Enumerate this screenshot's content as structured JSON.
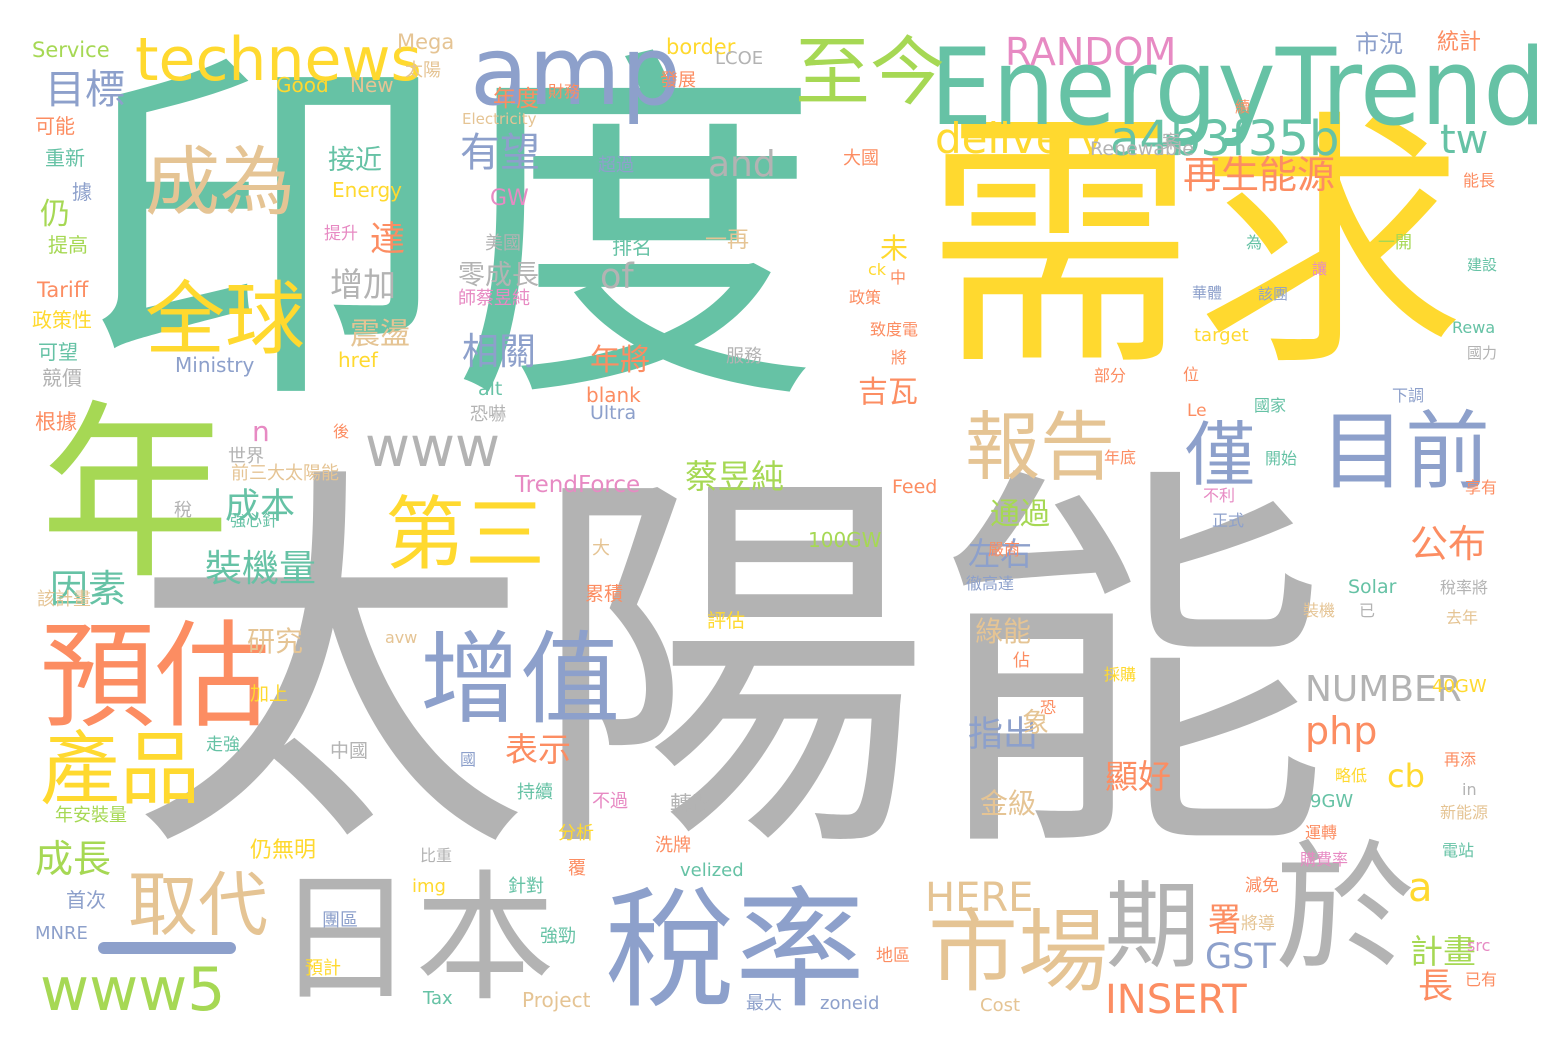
{
  "palette": {
    "green": "#66c2a5",
    "gray": "#b3b3b3",
    "yellow": "#ffd92f",
    "lime": "#a6d854",
    "orange": "#fc8d62",
    "blue": "#8da0cb",
    "tan": "#e5c494",
    "pink": "#e78ac3"
  },
  "words": [
    {
      "text": "太陽能",
      "color": "gray",
      "o": "h"
    },
    {
      "text": "印度",
      "color": "green",
      "o": "h"
    },
    {
      "text": "需求",
      "color": "yellow",
      "o": "h"
    },
    {
      "text": "年",
      "color": "lime",
      "o": "h"
    },
    {
      "text": "EnergyTrend",
      "color": "green",
      "o": "h"
    },
    {
      "text": "amp",
      "color": "blue",
      "o": "h"
    },
    {
      "text": "technews",
      "color": "yellow",
      "o": "h"
    },
    {
      "text": "至今",
      "color": "lime",
      "o": "h"
    },
    {
      "text": "日本",
      "color": "gray",
      "o": "h"
    },
    {
      "text": "稅率",
      "color": "blue",
      "o": "h"
    },
    {
      "text": "於",
      "color": "gray",
      "o": "h"
    },
    {
      "text": "市場",
      "color": "tan",
      "o": "h"
    },
    {
      "text": "期",
      "color": "gray",
      "o": "h"
    },
    {
      "text": "增值",
      "color": "blue",
      "o": "h"
    },
    {
      "text": "預估",
      "color": "orange",
      "o": "h"
    },
    {
      "text": "產品",
      "color": "yellow",
      "o": "h"
    },
    {
      "text": "第三",
      "color": "yellow",
      "o": "h"
    },
    {
      "text": "全球",
      "color": "yellow",
      "o": "h"
    },
    {
      "text": "成為",
      "color": "tan",
      "o": "h"
    },
    {
      "text": "目前",
      "color": "blue",
      "o": "h"
    },
    {
      "text": "報告",
      "color": "tan",
      "o": "h"
    },
    {
      "text": "僅",
      "color": "blue",
      "o": "h"
    },
    {
      "text": "取代",
      "color": "tan",
      "o": "h"
    },
    {
      "text": "www5",
      "color": "lime",
      "o": "h"
    },
    {
      "text": "www",
      "color": "gray",
      "o": "h"
    },
    {
      "text": "a4b3f35b",
      "color": "green",
      "o": "h"
    },
    {
      "text": "tw",
      "color": "green",
      "o": "h"
    },
    {
      "text": "RANDOM",
      "color": "pink",
      "o": "h"
    },
    {
      "text": "delivery",
      "color": "yellow",
      "o": "h"
    },
    {
      "text": "and",
      "color": "gray",
      "o": "h"
    },
    {
      "text": "NUMBER",
      "color": "gray",
      "o": "h"
    },
    {
      "text": "HERE",
      "color": "tan",
      "o": "h"
    },
    {
      "text": "INSERT",
      "color": "orange",
      "o": "h"
    },
    {
      "text": "php",
      "color": "orange",
      "o": "h"
    },
    {
      "text": "cb",
      "color": "yellow",
      "o": "h"
    },
    {
      "text": "a",
      "color": "yellow",
      "o": "h"
    },
    {
      "text": "公布",
      "color": "orange",
      "o": "h"
    },
    {
      "text": "計畫",
      "color": "lime",
      "o": "h"
    },
    {
      "text": "長",
      "color": "orange",
      "o": "h"
    },
    {
      "text": "GST",
      "color": "blue",
      "o": "h"
    },
    {
      "text": "署",
      "color": "orange",
      "o": "h"
    },
    {
      "text": "顯好",
      "color": "orange",
      "o": "h"
    },
    {
      "text": "再生能源",
      "color": "orange",
      "o": "h"
    },
    {
      "text": "有望",
      "color": "blue",
      "o": "h"
    },
    {
      "text": "of",
      "color": "gray",
      "o": "h"
    },
    {
      "text": "相關",
      "color": "blue",
      "o": "h"
    },
    {
      "text": "年將",
      "color": "orange",
      "o": "h"
    },
    {
      "text": "吉瓦",
      "color": "orange",
      "o": "h"
    },
    {
      "text": "蔡昱純",
      "color": "lime",
      "o": "h"
    },
    {
      "text": "TrendForce",
      "color": "pink",
      "o": "h"
    },
    {
      "text": "通過",
      "color": "lime",
      "o": "h"
    },
    {
      "text": "左右",
      "color": "blue",
      "o": "h"
    },
    {
      "text": "指出",
      "color": "blue",
      "o": "h"
    },
    {
      "text": "表示",
      "color": "orange",
      "o": "h"
    },
    {
      "text": "金級",
      "color": "tan",
      "o": "h"
    },
    {
      "text": "綠能",
      "color": "tan",
      "o": "h"
    },
    {
      "text": "目標",
      "color": "blue",
      "o": "h"
    },
    {
      "text": "成本",
      "color": "green",
      "o": "h"
    },
    {
      "text": "裝機量",
      "color": "green",
      "o": "h"
    },
    {
      "text": "因素",
      "color": "green",
      "o": "h"
    },
    {
      "text": "成長",
      "color": "lime",
      "o": "h"
    },
    {
      "text": "研究",
      "color": "tan",
      "o": "h"
    },
    {
      "text": "增加",
      "color": "gray",
      "o": "h"
    },
    {
      "text": "震盪",
      "color": "tan",
      "o": "h"
    },
    {
      "text": "零成長",
      "color": "gray",
      "o": "h"
    },
    {
      "text": "接近",
      "color": "green",
      "o": "h"
    },
    {
      "text": "達",
      "color": "orange",
      "o": "h"
    },
    {
      "text": "仍",
      "color": "lime",
      "o": "h"
    },
    {
      "text": "n",
      "color": "pink",
      "o": "h"
    },
    {
      "text": "未",
      "color": "yellow",
      "o": "h"
    },
    {
      "text": "象",
      "color": "tan",
      "o": "h"
    },
    {
      "text": "市況",
      "color": "blue",
      "o": "h"
    },
    {
      "text": "統計",
      "color": "orange",
      "o": "h"
    },
    {
      "text": "Service",
      "color": "lime",
      "o": "h"
    },
    {
      "text": "Mega",
      "color": "tan",
      "o": "h"
    },
    {
      "text": "border",
      "color": "yellow",
      "o": "h"
    },
    {
      "text": "Good",
      "color": "yellow",
      "o": "h"
    },
    {
      "text": "New",
      "color": "tan",
      "o": "h"
    },
    {
      "text": "太陽",
      "color": "tan",
      "o": "h"
    },
    {
      "text": "LCOE",
      "color": "gray",
      "o": "h"
    },
    {
      "text": "年度",
      "color": "orange",
      "o": "h"
    },
    {
      "text": "發展",
      "color": "orange",
      "o": "h"
    },
    {
      "text": "財務",
      "color": "orange",
      "o": "h"
    },
    {
      "text": "Electricity",
      "color": "tan",
      "o": "h"
    },
    {
      "text": "可能",
      "color": "orange",
      "o": "h"
    },
    {
      "text": "重新",
      "color": "green",
      "o": "h"
    },
    {
      "text": "據",
      "color": "blue",
      "o": "h"
    },
    {
      "text": "提高",
      "color": "lime",
      "o": "h"
    },
    {
      "text": "Tariff",
      "color": "orange",
      "o": "h"
    },
    {
      "text": "政策性",
      "color": "yellow",
      "o": "h"
    },
    {
      "text": "可望",
      "color": "green",
      "o": "h"
    },
    {
      "text": "競價",
      "color": "gray",
      "o": "h"
    },
    {
      "text": "根據",
      "color": "orange",
      "o": "h"
    },
    {
      "text": "Ministry",
      "color": "blue",
      "o": "h"
    },
    {
      "text": "Energy",
      "color": "yellow",
      "o": "h"
    },
    {
      "text": "GW",
      "color": "pink",
      "o": "h"
    },
    {
      "text": "提升",
      "color": "pink",
      "o": "h"
    },
    {
      "text": "美國",
      "color": "gray",
      "o": "h"
    },
    {
      "text": "排名",
      "color": "green",
      "o": "h"
    },
    {
      "text": "一再",
      "color": "tan",
      "o": "h"
    },
    {
      "text": "超過",
      "color": "blue",
      "o": "h"
    },
    {
      "text": "大國",
      "color": "orange",
      "o": "h"
    },
    {
      "text": "Renewable",
      "color": "gray",
      "o": "h"
    },
    {
      "text": "案",
      "color": "gray",
      "o": "h"
    },
    {
      "text": "師蔡昱純",
      "color": "pink",
      "o": "h"
    },
    {
      "text": "服務",
      "color": "gray",
      "o": "h"
    },
    {
      "text": "alt",
      "color": "green",
      "o": "h"
    },
    {
      "text": "href",
      "color": "yellow",
      "o": "h"
    },
    {
      "text": "blank",
      "color": "orange",
      "o": "h"
    },
    {
      "text": "Ultra",
      "color": "blue",
      "o": "h"
    },
    {
      "text": "恐嚇",
      "color": "gray",
      "o": "h"
    },
    {
      "text": "後",
      "color": "orange",
      "o": "h"
    },
    {
      "text": "世界",
      "color": "gray",
      "o": "h"
    },
    {
      "text": "前三大太陽能",
      "color": "tan",
      "o": "h"
    },
    {
      "text": "稅",
      "color": "gray",
      "o": "h"
    },
    {
      "text": "強心針",
      "color": "green",
      "o": "h"
    },
    {
      "text": "Feed",
      "color": "orange",
      "o": "h"
    },
    {
      "text": "100GW",
      "color": "lime",
      "o": "h"
    },
    {
      "text": "大",
      "color": "tan",
      "o": "h"
    },
    {
      "text": "累積",
      "color": "orange",
      "o": "h"
    },
    {
      "text": "該計畫",
      "color": "tan",
      "o": "h"
    },
    {
      "text": "評估",
      "color": "yellow",
      "o": "h"
    },
    {
      "text": "avw",
      "color": "tan",
      "o": "h"
    },
    {
      "text": "加上",
      "color": "yellow",
      "o": "h"
    },
    {
      "text": "走強",
      "color": "green",
      "o": "h"
    },
    {
      "text": "中國",
      "color": "gray",
      "o": "h"
    },
    {
      "text": "國",
      "color": "blue",
      "o": "h"
    },
    {
      "text": "持續",
      "color": "green",
      "o": "h"
    },
    {
      "text": "不過",
      "color": "pink",
      "o": "h"
    },
    {
      "text": "分析",
      "color": "yellow",
      "o": "h"
    },
    {
      "text": "年安裝量",
      "color": "lime",
      "o": "h"
    },
    {
      "text": "比重",
      "color": "gray",
      "o": "h"
    },
    {
      "text": "仍無明",
      "color": "yellow",
      "o": "h"
    },
    {
      "text": "轉跡",
      "color": "gray",
      "o": "h"
    },
    {
      "text": "洗牌",
      "color": "orange",
      "o": "h"
    },
    {
      "text": "velized",
      "color": "green",
      "o": "h"
    },
    {
      "text": "覆",
      "color": "orange",
      "o": "h"
    },
    {
      "text": "img",
      "color": "yellow",
      "o": "h"
    },
    {
      "text": "針對",
      "color": "green",
      "o": "h"
    },
    {
      "text": "首次",
      "color": "blue",
      "o": "h"
    },
    {
      "text": "MNRE",
      "color": "blue",
      "o": "h"
    },
    {
      "text": "團區",
      "color": "blue",
      "o": "h"
    },
    {
      "text": "強勁",
      "color": "green",
      "o": "h"
    },
    {
      "text": "預計",
      "color": "yellow",
      "o": "h"
    },
    {
      "text": "Tax",
      "color": "green",
      "o": "h"
    },
    {
      "text": "Project",
      "color": "tan",
      "o": "h"
    },
    {
      "text": "最大",
      "color": "blue",
      "o": "h"
    },
    {
      "text": "zoneid",
      "color": "blue",
      "o": "h"
    },
    {
      "text": "Cost",
      "color": "tan",
      "o": "h"
    },
    {
      "text": "地區",
      "color": "orange",
      "o": "h"
    },
    {
      "text": "將導",
      "color": "tan",
      "o": "h"
    },
    {
      "text": "減免",
      "color": "orange",
      "o": "h"
    },
    {
      "text": "src",
      "color": "pink",
      "o": "h"
    },
    {
      "text": "已有",
      "color": "orange",
      "o": "h"
    },
    {
      "text": "購費率",
      "color": "pink",
      "o": "h"
    },
    {
      "text": "運轉",
      "color": "orange",
      "o": "h"
    },
    {
      "text": "略低",
      "color": "yellow",
      "o": "h"
    },
    {
      "text": "再添",
      "color": "orange",
      "o": "h"
    },
    {
      "text": "9GW",
      "color": "green",
      "o": "h"
    },
    {
      "text": "電站",
      "color": "green",
      "o": "h"
    },
    {
      "text": "新能源",
      "color": "tan",
      "o": "h"
    },
    {
      "text": "in",
      "color": "gray",
      "o": "h"
    },
    {
      "text": "40GW",
      "color": "yellow",
      "o": "h"
    },
    {
      "text": "恐",
      "color": "orange",
      "o": "h"
    },
    {
      "text": "採購",
      "color": "yellow",
      "o": "h"
    },
    {
      "text": "佔",
      "color": "orange",
      "o": "h"
    },
    {
      "text": "Solar",
      "color": "green",
      "o": "h"
    },
    {
      "text": "裝機",
      "color": "tan",
      "o": "h"
    },
    {
      "text": "已",
      "color": "gray",
      "o": "h"
    },
    {
      "text": "去年",
      "color": "tan",
      "o": "h"
    },
    {
      "text": "稅率將",
      "color": "gray",
      "o": "h"
    },
    {
      "text": "徹高達",
      "color": "blue",
      "o": "h"
    },
    {
      "text": "嚴商",
      "color": "orange",
      "o": "h"
    },
    {
      "text": "正式",
      "color": "blue",
      "o": "h"
    },
    {
      "text": "不利",
      "color": "pink",
      "o": "h"
    },
    {
      "text": "享有",
      "color": "orange",
      "o": "h"
    },
    {
      "text": "年底",
      "color": "orange",
      "o": "h"
    },
    {
      "text": "開始",
      "color": "green",
      "o": "h"
    },
    {
      "text": "國家",
      "color": "green",
      "o": "h"
    },
    {
      "text": "下調",
      "color": "blue",
      "o": "h"
    },
    {
      "text": "Le",
      "color": "orange",
      "o": "h"
    },
    {
      "text": "部分",
      "color": "orange",
      "o": "h"
    },
    {
      "text": "位",
      "color": "orange",
      "o": "h"
    },
    {
      "text": "將",
      "color": "orange",
      "o": "h"
    },
    {
      "text": "致度電",
      "color": "orange",
      "o": "h"
    },
    {
      "text": "target",
      "color": "yellow",
      "o": "h"
    },
    {
      "text": "華體",
      "color": "blue",
      "o": "h"
    },
    {
      "text": "該團",
      "color": "blue",
      "o": "h"
    },
    {
      "text": "Rewa",
      "color": "green",
      "o": "h"
    },
    {
      "text": "國力",
      "color": "gray",
      "o": "h"
    },
    {
      "text": "建設",
      "color": "green",
      "o": "h"
    },
    {
      "text": "讓",
      "color": "pink",
      "o": "h"
    },
    {
      "text": "一開",
      "color": "lime",
      "o": "h"
    },
    {
      "text": "為",
      "color": "green",
      "o": "h"
    },
    {
      "text": "能長",
      "color": "orange",
      "o": "h"
    },
    {
      "text": "續",
      "color": "orange",
      "o": "h"
    },
    {
      "text": "政策",
      "color": "orange",
      "o": "h"
    },
    {
      "text": "中",
      "color": "orange",
      "o": "h"
    },
    {
      "text": "ck",
      "color": "yellow",
      "o": "h"
    }
  ]
}
